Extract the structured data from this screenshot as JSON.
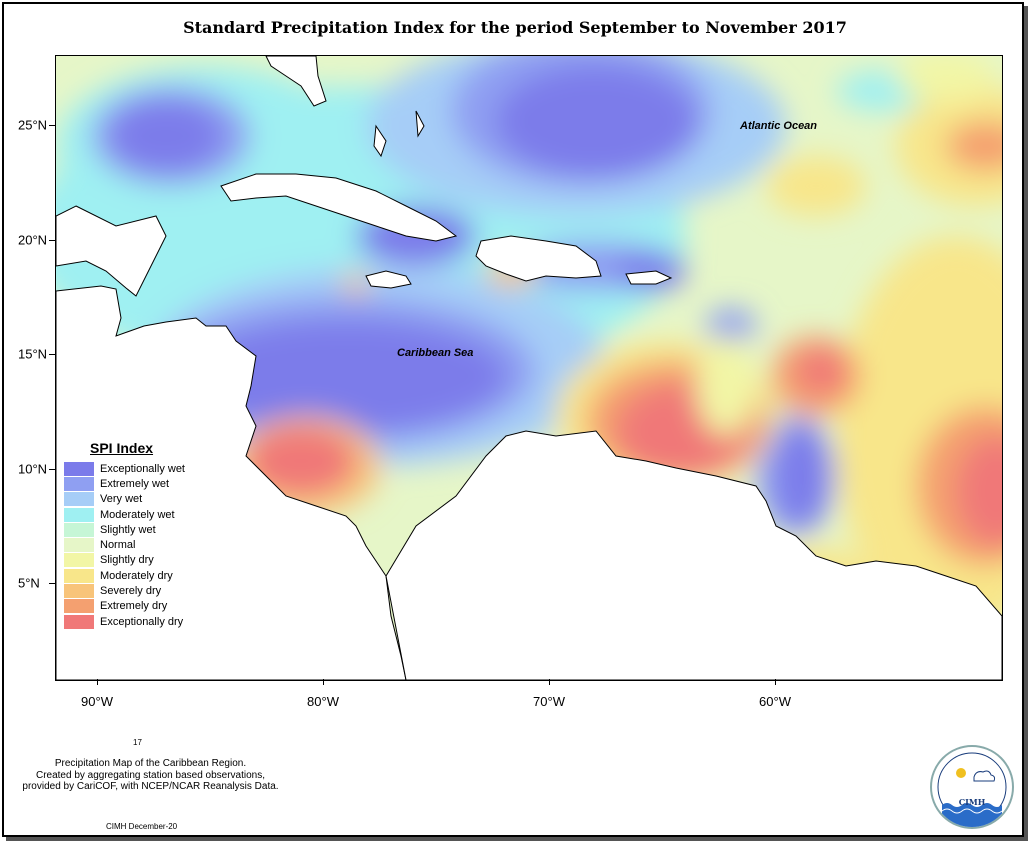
{
  "title": "Standard Precipitation Index for the period September to November 2017",
  "x_ticks": [
    {
      "label": "90°W",
      "lon": -90
    },
    {
      "label": "80°W",
      "lon": -80
    },
    {
      "label": "70°W",
      "lon": -70
    },
    {
      "label": "60°W",
      "lon": -60
    }
  ],
  "y_ticks": [
    {
      "label": "25°N",
      "lat": 25
    },
    {
      "label": "20°N",
      "lat": 20
    },
    {
      "label": "15°N",
      "lat": 15
    },
    {
      "label": "10°N",
      "lat": 10
    },
    {
      "label": "5°N",
      "lat": 5
    }
  ],
  "labels": {
    "atlantic": "Atlantic Ocean",
    "caribbean": "Caribbean Sea"
  },
  "legend": {
    "title": "SPI Index",
    "items": [
      {
        "label": "Exceptionally wet",
        "color": "#7b7bea"
      },
      {
        "label": "Extremely wet",
        "color": "#8f9ff2"
      },
      {
        "label": "Very wet",
        "color": "#a6cdf7"
      },
      {
        "label": "Moderately wet",
        "color": "#9ff0f2"
      },
      {
        "label": "Slightly wet",
        "color": "#c6f6d6"
      },
      {
        "label": "Normal",
        "color": "#e6f6c8"
      },
      {
        "label": "Slightly dry",
        "color": "#f2f6a6"
      },
      {
        "label": "Moderately dry",
        "color": "#f8e68a"
      },
      {
        "label": "Severely dry",
        "color": "#f8c47a"
      },
      {
        "label": "Extremely dry",
        "color": "#f4a070"
      },
      {
        "label": "Exceptionally dry",
        "color": "#f07878"
      }
    ]
  },
  "caption": {
    "number": "17",
    "lines": [
      "Precipitation Map of the Caribbean Region.",
      "Created by aggregating station based observations,",
      "provided by CariCOF, with NCEP/NCAR Reanalysis Data."
    ],
    "date": "CIMH December-20"
  },
  "logo": {
    "text": "CIMH"
  }
}
